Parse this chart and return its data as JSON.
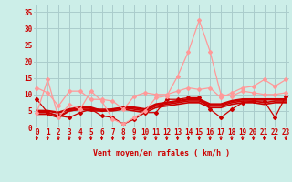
{
  "bg_color": "#cceee8",
  "grid_color": "#aacccc",
  "xlabel": "Vent moyen/en rafales ( km/h )",
  "xlabel_color": "#cc0000",
  "ylabel_color": "#cc0000",
  "yticks": [
    0,
    5,
    10,
    15,
    20,
    25,
    30,
    35
  ],
  "xticks": [
    0,
    1,
    2,
    3,
    4,
    5,
    6,
    7,
    8,
    9,
    10,
    11,
    12,
    13,
    14,
    15,
    16,
    17,
    18,
    19,
    20,
    21,
    22,
    23
  ],
  "xlim": [
    -0.3,
    23.3
  ],
  "ylim": [
    0,
    37
  ],
  "series": [
    {
      "x": [
        0,
        1,
        2,
        3,
        4,
        5,
        6,
        7,
        8,
        9,
        10,
        11,
        12,
        13,
        14,
        15,
        16,
        17,
        18,
        19,
        20,
        21,
        22,
        23
      ],
      "y": [
        8.5,
        4.5,
        3.5,
        3.0,
        4.5,
        5.5,
        3.5,
        3.0,
        1.0,
        2.5,
        4.5,
        4.5,
        8.5,
        8.5,
        9.0,
        9.0,
        5.5,
        3.0,
        5.5,
        7.5,
        8.0,
        8.0,
        3.0,
        9.5
      ],
      "color": "#cc0000",
      "lw": 0.9,
      "marker": "D",
      "markersize": 2.0
    },
    {
      "x": [
        0,
        1,
        2,
        3,
        4,
        5,
        6,
        7,
        8,
        9,
        10,
        11,
        12,
        13,
        14,
        15,
        16,
        17,
        18,
        19,
        20,
        21,
        22,
        23
      ],
      "y": [
        4.0,
        4.0,
        3.0,
        5.0,
        5.5,
        5.0,
        5.0,
        5.0,
        5.5,
        5.0,
        4.5,
        6.0,
        6.5,
        7.0,
        7.5,
        7.5,
        6.0,
        6.0,
        7.0,
        7.5,
        7.5,
        7.0,
        7.5,
        7.5
      ],
      "color": "#cc0000",
      "lw": 1.2,
      "marker": null,
      "markersize": 0
    },
    {
      "x": [
        0,
        1,
        2,
        3,
        4,
        5,
        6,
        7,
        8,
        9,
        10,
        11,
        12,
        13,
        14,
        15,
        16,
        17,
        18,
        19,
        20,
        21,
        22,
        23
      ],
      "y": [
        4.5,
        4.5,
        3.5,
        5.0,
        5.5,
        5.5,
        5.5,
        5.5,
        6.0,
        5.5,
        5.0,
        6.5,
        7.0,
        7.5,
        8.0,
        8.0,
        6.5,
        6.5,
        7.5,
        8.0,
        8.0,
        7.5,
        8.0,
        8.0
      ],
      "color": "#cc0000",
      "lw": 1.2,
      "marker": null,
      "markersize": 0
    },
    {
      "x": [
        0,
        1,
        2,
        3,
        4,
        5,
        6,
        7,
        8,
        9,
        10,
        11,
        12,
        13,
        14,
        15,
        16,
        17,
        18,
        19,
        20,
        21,
        22,
        23
      ],
      "y": [
        5.0,
        5.0,
        4.5,
        5.5,
        6.0,
        6.0,
        5.0,
        5.5,
        6.0,
        6.0,
        5.5,
        7.0,
        7.5,
        8.0,
        8.5,
        8.5,
        7.0,
        7.0,
        8.0,
        8.5,
        8.5,
        8.5,
        8.5,
        8.5
      ],
      "color": "#cc0000",
      "lw": 1.8,
      "marker": null,
      "markersize": 0
    },
    {
      "x": [
        0,
        1,
        2,
        3,
        4,
        5,
        6,
        7,
        8,
        9,
        10,
        11,
        12,
        13,
        14,
        15,
        16,
        17,
        18,
        19,
        20,
        21,
        22,
        23
      ],
      "y": [
        12.0,
        10.5,
        6.5,
        11.0,
        11.0,
        8.5,
        8.5,
        8.0,
        5.5,
        9.5,
        10.5,
        10.0,
        10.0,
        11.0,
        12.0,
        11.5,
        12.0,
        9.0,
        10.5,
        12.0,
        12.5,
        14.5,
        12.5,
        14.5
      ],
      "color": "#ff9999",
      "lw": 0.9,
      "marker": "D",
      "markersize": 2.0
    },
    {
      "x": [
        0,
        1,
        2,
        3,
        4,
        5,
        6,
        7,
        8,
        9,
        10,
        11,
        12,
        13,
        14,
        15,
        16,
        17,
        18,
        19,
        20,
        21,
        22,
        23
      ],
      "y": [
        4.5,
        14.5,
        3.0,
        7.0,
        5.5,
        11.0,
        8.0,
        2.5,
        1.0,
        3.0,
        5.0,
        9.0,
        9.5,
        15.5,
        23.0,
        32.5,
        23.0,
        10.0,
        9.5,
        11.0,
        10.5,
        10.0,
        10.0,
        10.5
      ],
      "color": "#ff9999",
      "lw": 0.9,
      "marker": "D",
      "markersize": 2.0
    }
  ],
  "arrow_color": "#cc0000",
  "tick_fontsize": 5.5,
  "label_fontsize": 6.0
}
